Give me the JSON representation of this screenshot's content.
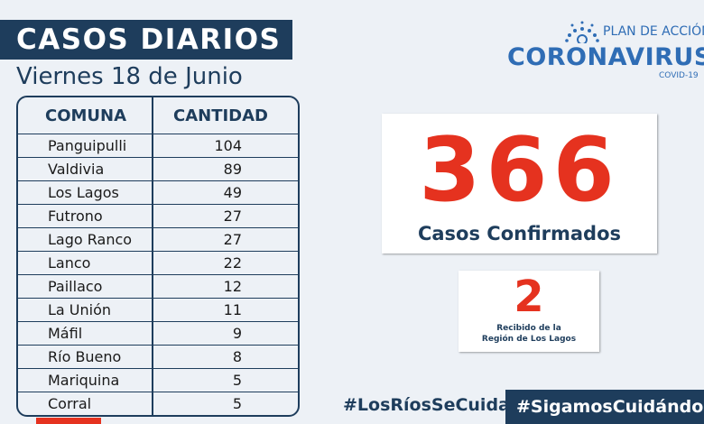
{
  "header": {
    "title": "CASOS DIARIOS",
    "date": "Viernes 18 de Junio"
  },
  "table": {
    "col_comuna": "COMUNA",
    "col_cantidad": "CANTIDAD",
    "rows": [
      {
        "comuna": "Panguipulli",
        "cantidad": "104"
      },
      {
        "comuna": "Valdivia",
        "cantidad": "89"
      },
      {
        "comuna": "Los Lagos",
        "cantidad": "49"
      },
      {
        "comuna": "Futrono",
        "cantidad": "27"
      },
      {
        "comuna": "Lago Ranco",
        "cantidad": "27"
      },
      {
        "comuna": "Lanco",
        "cantidad": "22"
      },
      {
        "comuna": "Paillaco",
        "cantidad": "12"
      },
      {
        "comuna": "La Unión",
        "cantidad": "11"
      },
      {
        "comuna": "Máfil",
        "cantidad": "9"
      },
      {
        "comuna": "Río Bueno",
        "cantidad": "8"
      },
      {
        "comuna": "Mariquina",
        "cantidad": "5"
      },
      {
        "comuna": "Corral",
        "cantidad": "5"
      }
    ]
  },
  "logo": {
    "plan": "PLAN DE ACCIÓN",
    "name": "CORONAVIRUS",
    "covid": "COVID-19",
    "icon": "sun-rays-icon"
  },
  "confirmed": {
    "number": "366",
    "label": "Casos Confirmados"
  },
  "received": {
    "number": "2",
    "label_line1": "Recibido de la",
    "label_line2": "Región de Los Lagos"
  },
  "footer": {
    "hashtag_left": "#LosRíosSeCuida",
    "hashtag_right": "#SigamosCuidándonos"
  },
  "colors": {
    "navy": "#1e3d5c",
    "red": "#e5321f",
    "blue": "#2f6db5",
    "background": "#edf1f6"
  }
}
